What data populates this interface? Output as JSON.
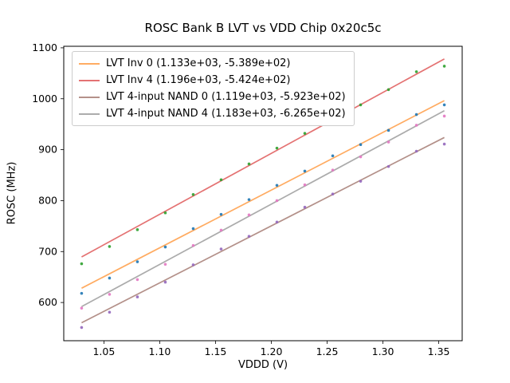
{
  "chart_data": {
    "type": "scatter",
    "title": "ROSC Bank B LVT vs VDD Chip 0x20c5c",
    "xlabel": "VDDD (V)",
    "ylabel": "ROSC (MHz)",
    "xlim": [
      1.014,
      1.371
    ],
    "ylim": [
      525,
      1103
    ],
    "x_ticks": [
      1.05,
      1.1,
      1.15,
      1.2,
      1.25,
      1.3,
      1.35
    ],
    "y_ticks": [
      600,
      700,
      800,
      900,
      1000,
      1100
    ],
    "grid": false,
    "legend_position": "upper left",
    "x": [
      1.03,
      1.055,
      1.08,
      1.105,
      1.13,
      1.155,
      1.18,
      1.205,
      1.23,
      1.255,
      1.28,
      1.305,
      1.33,
      1.355
    ],
    "series": [
      {
        "label": "LVT Inv 0 (1.133e+03, -5.389e+02)",
        "fit_slope": 1133.0,
        "fit_intercept": -538.9,
        "line_color": "#ff7f0e",
        "point_color": "#1f77b4",
        "points": [
          618,
          648,
          680,
          709,
          745,
          773,
          802,
          830,
          858,
          888,
          910,
          938,
          969,
          988
        ]
      },
      {
        "label": "LVT Inv 4 (1.196e+03, -5.424e+02)",
        "fit_slope": 1196.0,
        "fit_intercept": -542.4,
        "line_color": "#d62728",
        "point_color": "#2ca02c",
        "points": [
          676,
          710,
          743,
          776,
          812,
          841,
          872,
          903,
          932,
          960,
          988,
          1018,
          1053,
          1064
        ]
      },
      {
        "label": "LVT 4-input NAND 0 (1.119e+03, -5.923e+02)",
        "fit_slope": 1119.0,
        "fit_intercept": -592.3,
        "line_color": "#8c564b",
        "point_color": "#9467bd",
        "points": [
          551,
          581,
          611,
          640,
          674,
          705,
          730,
          758,
          787,
          813,
          838,
          867,
          897,
          911
        ]
      },
      {
        "label": "LVT 4-input NAND 4 (1.183e+03, -6.265e+02)",
        "fit_slope": 1183.0,
        "fit_intercept": -626.5,
        "line_color": "#7f7f7f",
        "point_color": "#e377c2",
        "points": [
          589,
          616,
          645,
          675,
          712,
          742,
          772,
          800,
          831,
          860,
          886,
          915,
          948,
          966
        ]
      }
    ]
  }
}
